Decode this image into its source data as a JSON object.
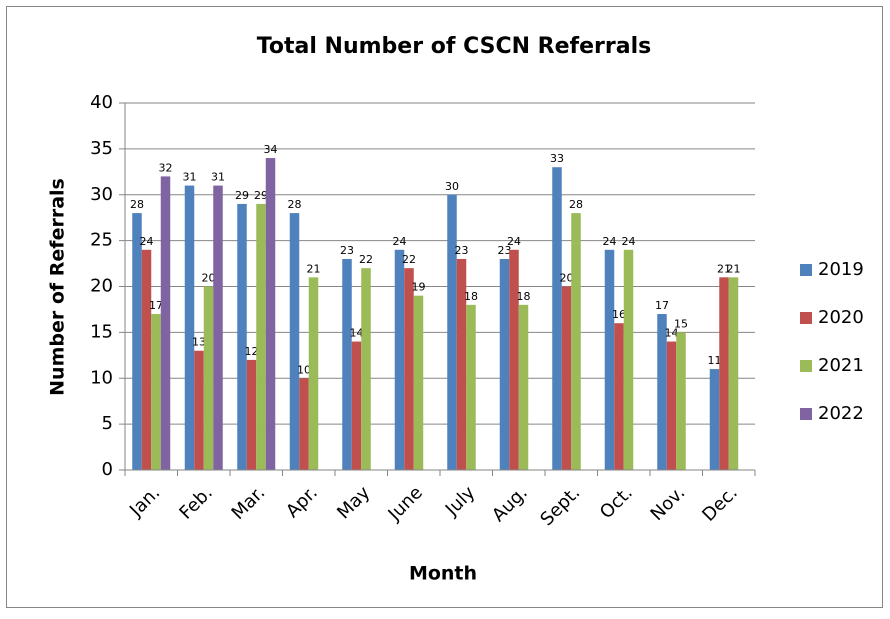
{
  "chart_data": {
    "type": "bar",
    "title": "Total Number of CSCN Referrals",
    "x_label": "Month",
    "y_label": "Number of Referrals",
    "categories": [
      "Jan.",
      "Feb.",
      "Mar.",
      "Apr.",
      "May",
      "June",
      "July",
      "Aug.",
      "Sept.",
      "Oct.",
      "Nov.",
      "Dec."
    ],
    "series": [
      {
        "name": "2019",
        "color": "#4f81bd",
        "values": [
          28,
          31,
          29,
          28,
          23,
          24,
          30,
          23,
          33,
          24,
          17,
          11
        ]
      },
      {
        "name": "2020",
        "color": "#c0504d",
        "values": [
          24,
          13,
          12,
          10,
          14,
          22,
          23,
          24,
          20,
          16,
          14,
          21
        ]
      },
      {
        "name": "2021",
        "color": "#9bbb59",
        "values": [
          17,
          20,
          29,
          21,
          22,
          19,
          18,
          18,
          28,
          24,
          15,
          21
        ]
      },
      {
        "name": "2022",
        "color": "#8064a2",
        "values": [
          32,
          31,
          34,
          null,
          null,
          null,
          null,
          null,
          null,
          null,
          null,
          null
        ]
      }
    ],
    "ylim": [
      0,
      40
    ],
    "yticks": [
      0,
      5,
      10,
      15,
      20,
      25,
      30,
      35,
      40
    ],
    "grid": true,
    "legend": "right",
    "data_labels": true
  }
}
